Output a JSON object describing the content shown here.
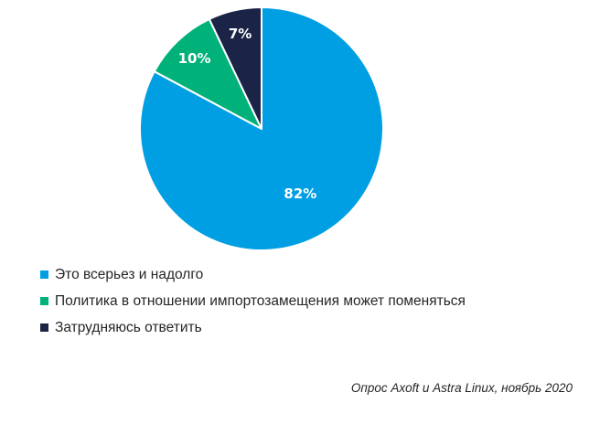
{
  "chart_data": {
    "type": "pie",
    "start_angle_deg": 0,
    "direction": "clockwise",
    "slices": [
      {
        "label": "Это всерьез и надолго",
        "value": 82,
        "display": "82%",
        "color": "#009fe3"
      },
      {
        "label": "Политика в отношении импортозамещения может поменяться",
        "value": 10,
        "display": "10%",
        "color": "#00b27a"
      },
      {
        "label": "Затрудняюсь ответить",
        "value": 7,
        "display": "7%",
        "color": "#1b2447"
      }
    ],
    "legend_position": "bottom-left",
    "source_note": "Опрос Axoft и Astra Linux, ноябрь 2020"
  }
}
